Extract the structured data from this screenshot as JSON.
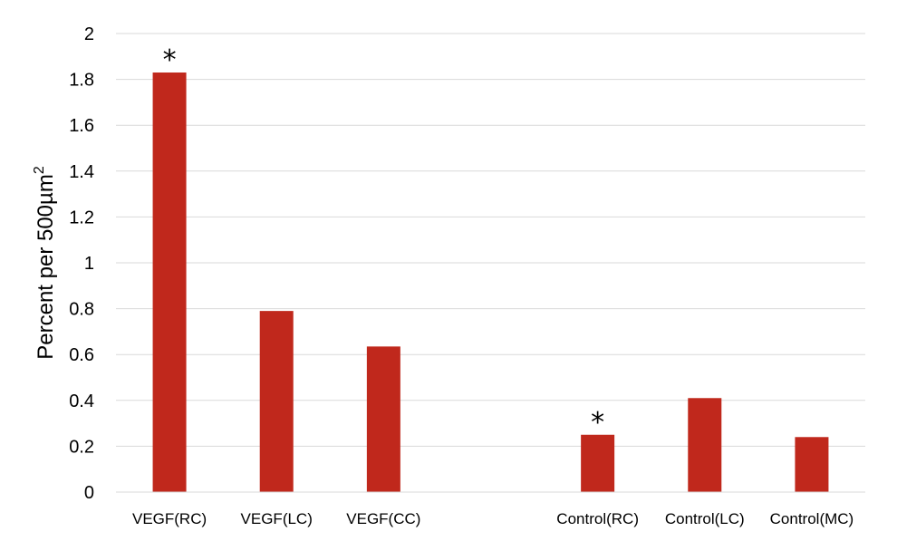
{
  "chart_data": {
    "type": "bar",
    "title": "",
    "xlabel": "",
    "ylabel": "Percent per 500µm",
    "ylabel_superscript": "2",
    "ylim": [
      0,
      2
    ],
    "yticks": [
      "0",
      "0.2",
      "0.4",
      "0.6",
      "0.8",
      "1",
      "1.2",
      "1.4",
      "1.6",
      "1.8",
      "2"
    ],
    "grid": true,
    "bar_color": "#c0281c",
    "categories": [
      "VEGF(RC)",
      "VEGF(LC)",
      "VEGF(CC)",
      "",
      "Control(RC)",
      "Control(LC)",
      "Control(MC)"
    ],
    "values": [
      1.83,
      0.79,
      0.635,
      null,
      0.25,
      0.41,
      0.24
    ],
    "annotations": [
      {
        "category": "VEGF(RC)",
        "text": "*"
      },
      {
        "category": "Control(RC)",
        "text": "*"
      }
    ]
  }
}
